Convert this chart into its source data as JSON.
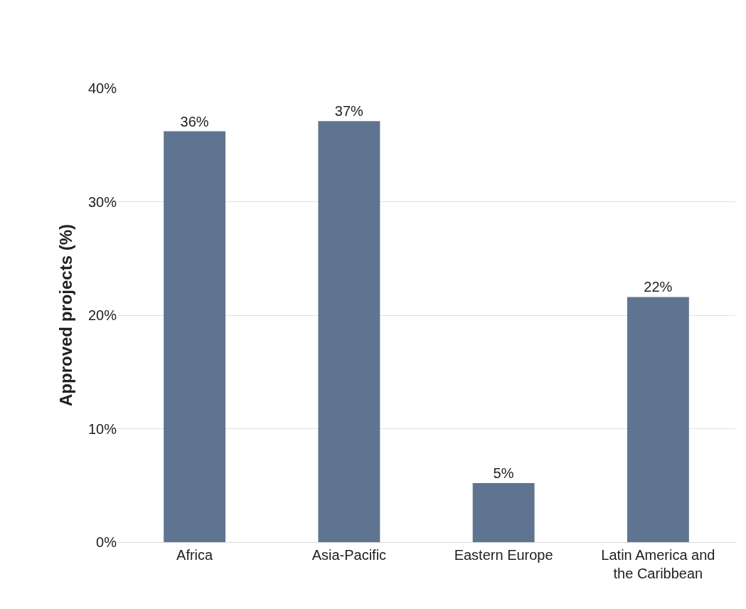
{
  "chart_data": {
    "type": "bar",
    "ylabel": "Approved projects (%)",
    "categories": [
      "Africa",
      "Asia-Pacific",
      "Eastern Europe",
      "Latin America and the Caribbean"
    ],
    "values": [
      36.2,
      37.1,
      5.2,
      21.6
    ],
    "value_labels": [
      "36%",
      "37%",
      "5%",
      "22%"
    ],
    "color": "#5f7490",
    "ylim": [
      0,
      40
    ],
    "yticks": [
      {
        "value": 0,
        "label": "0%"
      },
      {
        "value": 10,
        "label": "10%"
      },
      {
        "value": 20,
        "label": "20%"
      },
      {
        "value": 30,
        "label": "30%"
      },
      {
        "value": 40,
        "label": "40%"
      }
    ],
    "grid": "y"
  }
}
